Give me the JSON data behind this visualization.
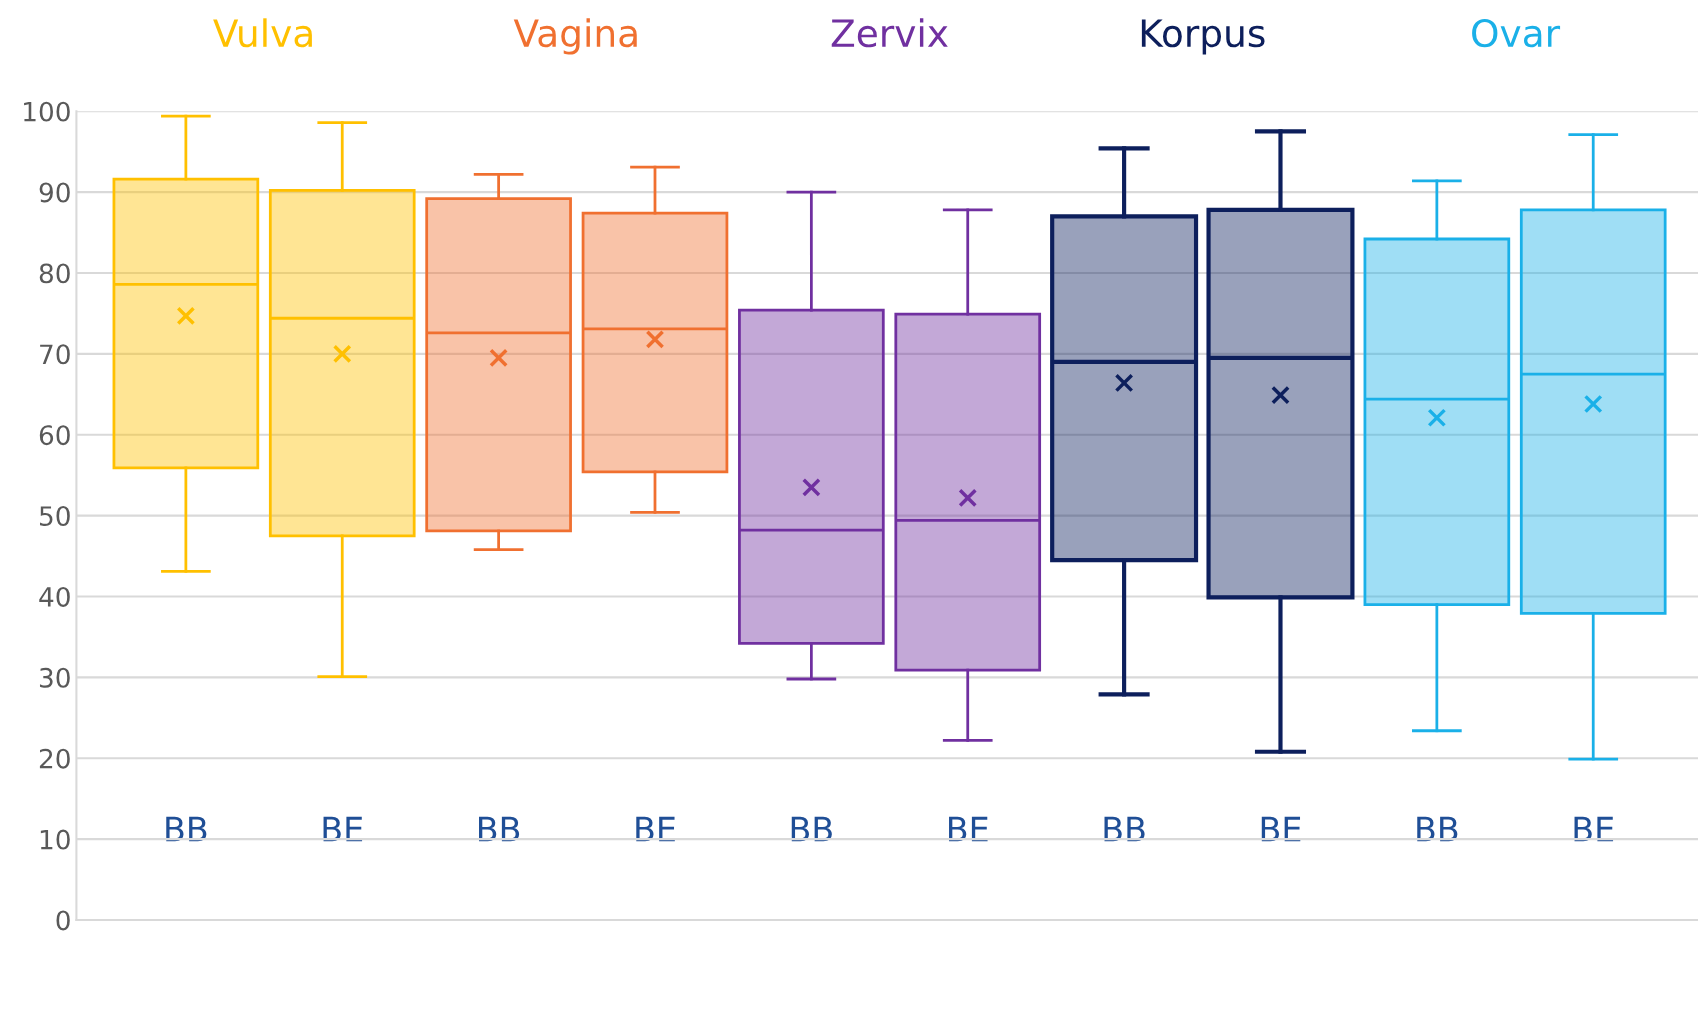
{
  "chart_data": {
    "type": "box",
    "categories": [
      "BB",
      "BE",
      "BB",
      "BE",
      "BB",
      "BE",
      "BB",
      "BE",
      "BB",
      "BE"
    ],
    "series": [
      {
        "name": "Vulva",
        "color": "#ffc000",
        "boxes": [
          {
            "low": 43.1,
            "q1": 55.9,
            "median": 78.6,
            "q3": 91.6,
            "high": 99.4,
            "mean": 74.7
          },
          {
            "low": 30.1,
            "q1": 47.5,
            "median": 74.4,
            "q3": 90.2,
            "high": 98.6,
            "mean": 70.0
          },
          null,
          null,
          null,
          null,
          null,
          null,
          null,
          null
        ]
      },
      {
        "name": "Vagina",
        "color": "#f07030",
        "boxes": [
          null,
          null,
          {
            "low": 45.8,
            "q1": 48.1,
            "median": 72.6,
            "q3": 89.2,
            "high": 92.2,
            "mean": 69.5
          },
          {
            "low": 50.4,
            "q1": 55.4,
            "median": 73.1,
            "q3": 87.4,
            "high": 93.1,
            "mean": 71.8
          },
          null,
          null,
          null,
          null,
          null,
          null
        ]
      },
      {
        "name": "Zervix",
        "color": "#7030a0",
        "boxes": [
          null,
          null,
          null,
          null,
          {
            "low": 29.8,
            "q1": 34.2,
            "median": 48.2,
            "q3": 75.4,
            "high": 90.0,
            "mean": 53.5
          },
          {
            "low": 22.2,
            "q1": 30.9,
            "median": 49.4,
            "q3": 74.9,
            "high": 87.8,
            "mean": 52.2
          },
          null,
          null,
          null,
          null
        ]
      },
      {
        "name": "Korpus",
        "color": "#0d1f5c",
        "boxes": [
          null,
          null,
          null,
          null,
          null,
          null,
          {
            "low": 27.9,
            "q1": 44.5,
            "median": 69.0,
            "q3": 87.0,
            "high": 95.4,
            "mean": 66.4
          },
          {
            "low": 20.8,
            "q1": 39.9,
            "median": 69.5,
            "q3": 87.8,
            "high": 97.5,
            "mean": 64.9
          },
          null,
          null
        ]
      },
      {
        "name": "Ovar",
        "color": "#1ab0e8",
        "boxes": [
          null,
          null,
          null,
          null,
          null,
          null,
          null,
          null,
          {
            "low": 23.4,
            "q1": 39.0,
            "median": 64.4,
            "q3": 84.2,
            "high": 91.4,
            "mean": 62.1
          },
          {
            "low": 19.9,
            "q1": 37.9,
            "median": 67.5,
            "q3": 87.8,
            "high": 97.1,
            "mean": 63.8
          }
        ]
      }
    ],
    "ylim": [
      0,
      100
    ],
    "yticks": [
      0,
      10,
      20,
      30,
      40,
      50,
      60,
      70,
      80,
      90,
      100
    ],
    "grid": "y",
    "legend": false,
    "marker": "cross"
  }
}
